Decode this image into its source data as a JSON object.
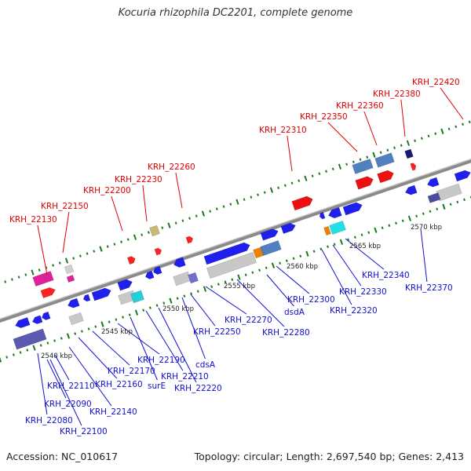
{
  "title": "Kocuria rhizophila DC2201, complete genome",
  "footer": {
    "accession": "Accession: NC_010617",
    "summary": "Topology: circular; Length: 2,697,540 bp; Genes: 2,413"
  },
  "colors": {
    "upper_labels": "#e00000",
    "lower_labels": "#1010d0",
    "scale_labels": "#222222",
    "backbone": "#8a8a8a",
    "tick_marks": "#1a7a1a"
  },
  "scale_labels": [
    "2540 kbp",
    "2545 kbp",
    "2550 kbp",
    "2555 kbp",
    "2560 kbp",
    "2565 kbp",
    "2570 kbp"
  ],
  "upper_gene_labels": [
    "KRH_22130",
    "KRH_22150",
    "KRH_22200",
    "KRH_22230",
    "KRH_22260",
    "KRH_22310",
    "KRH_22350",
    "KRH_22360",
    "KRH_22380",
    "KRH_22420"
  ],
  "lower_gene_labels": [
    "KRH_22080",
    "KRH_22090",
    "KRH_22100",
    "KRH_22110",
    "KRH_22140",
    "KRH_22160",
    "KRH_22170",
    "surE",
    "KRH_22190",
    "KRH_22210",
    "KRH_22220",
    "cdsA",
    "KRH_22250",
    "KRH_22270",
    "KRH_22280",
    "dsdA",
    "KRH_22300",
    "KRH_22320",
    "KRH_22330",
    "KRH_22340",
    "KRH_22370"
  ]
}
